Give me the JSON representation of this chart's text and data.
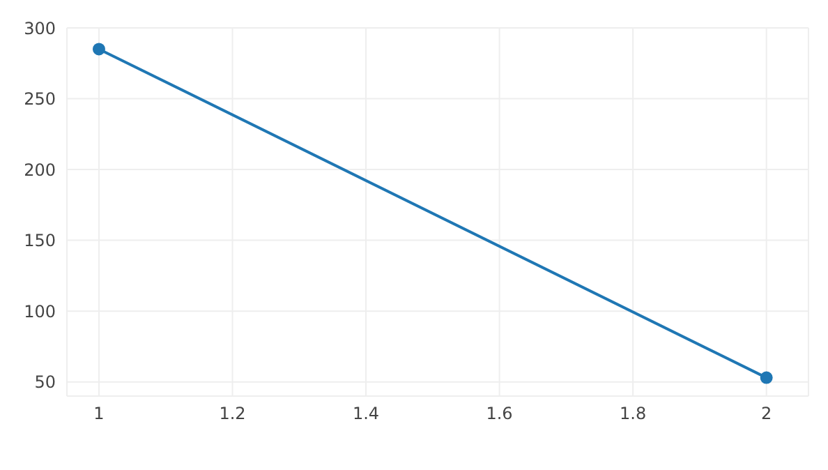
{
  "chart_data": {
    "type": "line",
    "x": [
      1,
      2
    ],
    "series": [
      {
        "color": "#1f77b4",
        "values": [
          285,
          53
        ]
      }
    ],
    "xlim": [
      0.952,
      2.063
    ],
    "xticks": [
      1,
      1.2,
      1.4,
      1.6,
      1.8,
      2
    ],
    "ylim": [
      40,
      300
    ],
    "yticks": [
      50,
      100,
      150,
      200,
      250,
      300
    ],
    "grid": true,
    "marker": "circle",
    "line_style": "solid",
    "legend": false
  }
}
